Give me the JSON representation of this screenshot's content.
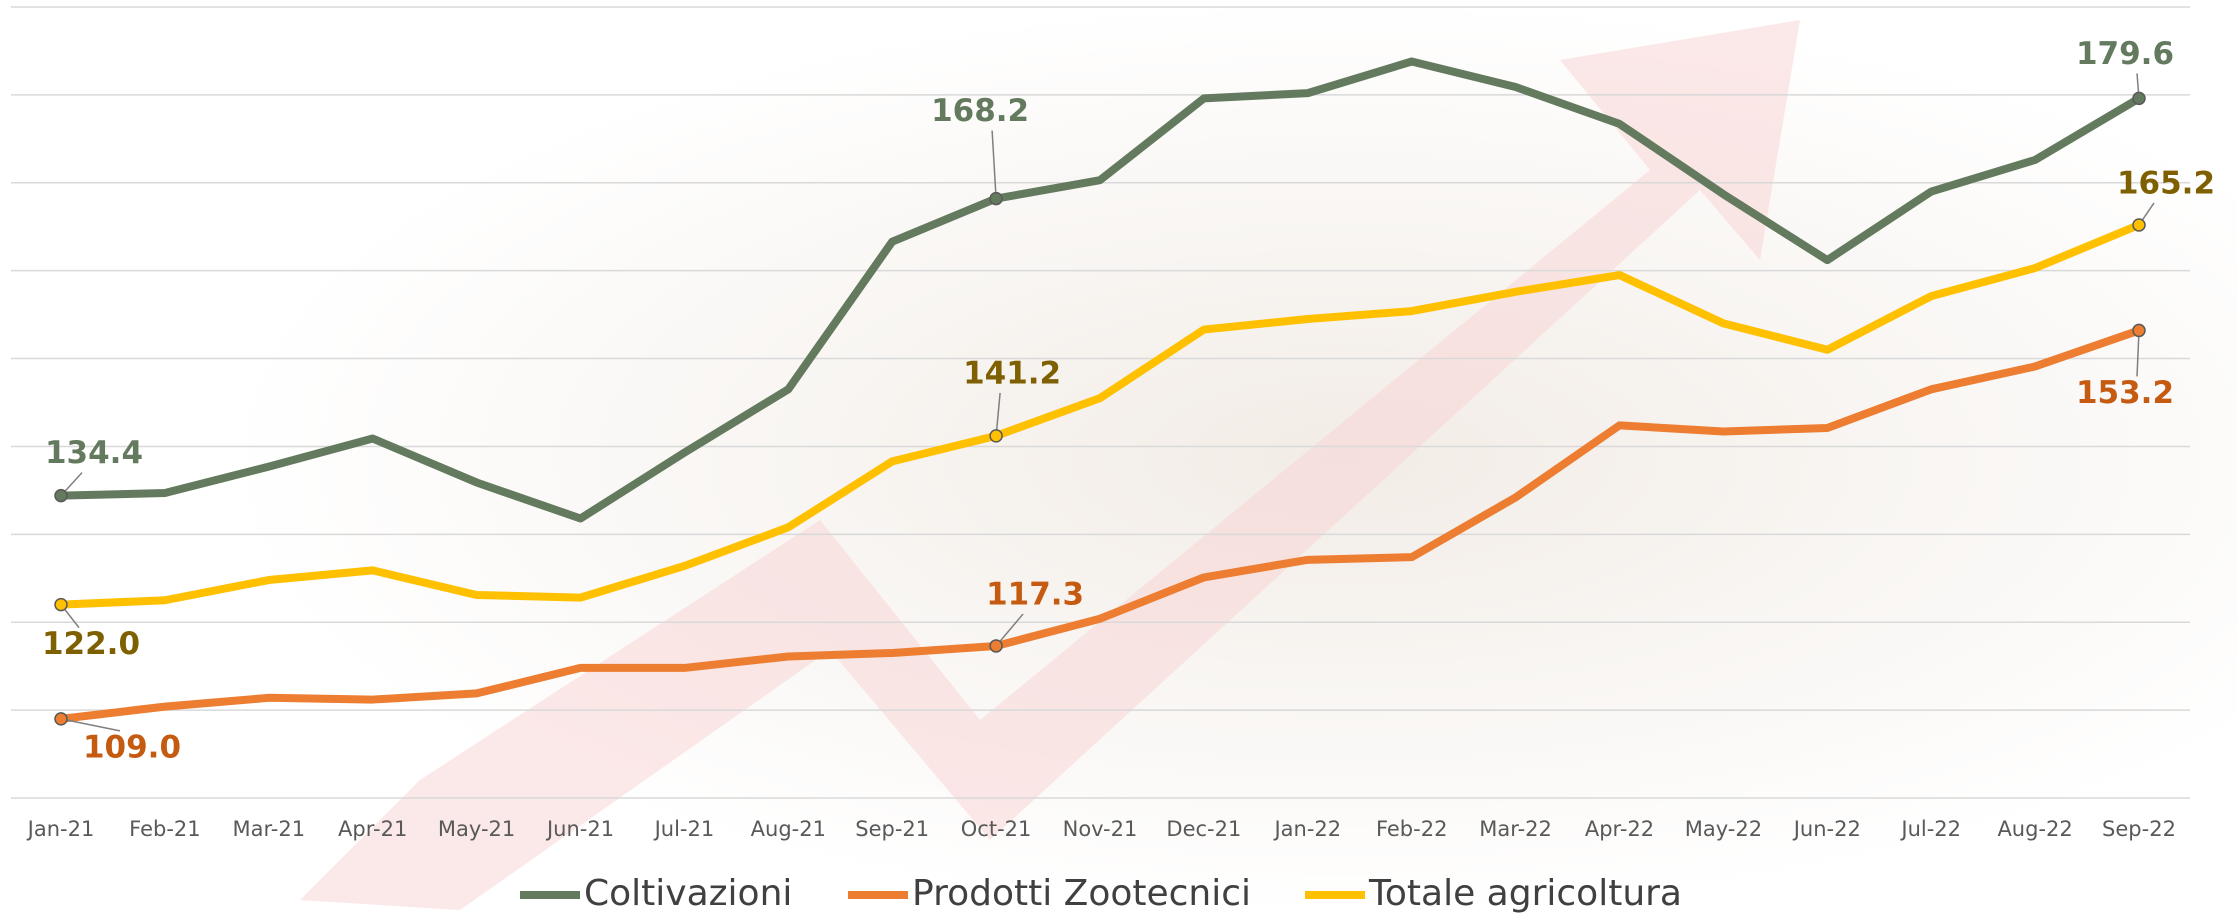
{
  "chart_data": {
    "type": "line",
    "categories": [
      "Jan-21",
      "Feb-21",
      "Mar-21",
      "Apr-21",
      "May-21",
      "Jun-21",
      "Jul-21",
      "Aug-21",
      "Sep-21",
      "Oct-21",
      "Nov-21",
      "Dec-21",
      "Jan-22",
      "Feb-22",
      "Mar-22",
      "Apr-22",
      "May-22",
      "Jun-22",
      "Jul-22",
      "Aug-22",
      "Sep-22"
    ],
    "series": [
      {
        "name": "Coltivazioni",
        "color": "#637a5e",
        "label_color": "#637a5e",
        "values": [
          134.4,
          134.7,
          137.7,
          140.9,
          135.9,
          131.8,
          139.3,
          146.5,
          163.3,
          168.2,
          170.3,
          179.6,
          180.2,
          183.8,
          180.9,
          176.7,
          168.7,
          161.2,
          169.0,
          172.6,
          179.6
        ],
        "value_labels": [
          "134.4",
          null,
          null,
          null,
          null,
          null,
          null,
          null,
          null,
          "168.2",
          null,
          null,
          null,
          null,
          null,
          null,
          null,
          null,
          null,
          null,
          "179.6"
        ]
      },
      {
        "name": "Prodotti Zootecnici",
        "color": "#ed7d31",
        "label_color": "#c55a11",
        "values": [
          109.0,
          110.4,
          111.4,
          111.2,
          111.9,
          114.8,
          114.8,
          116.1,
          116.5,
          117.3,
          120.4,
          125.1,
          127.1,
          127.4,
          134.2,
          142.4,
          141.7,
          142.1,
          146.5,
          149.1,
          153.2
        ],
        "value_labels": [
          "109.0",
          null,
          null,
          null,
          null,
          null,
          null,
          null,
          null,
          "117.3",
          null,
          null,
          null,
          null,
          null,
          null,
          null,
          null,
          null,
          null,
          "153.2"
        ]
      },
      {
        "name": "Totale agricoltura",
        "color": "#ffc000",
        "label_color": "#7f6000",
        "values": [
          122.0,
          122.5,
          124.8,
          125.9,
          123.1,
          122.8,
          126.4,
          130.8,
          138.3,
          141.2,
          145.5,
          153.3,
          154.5,
          155.4,
          157.6,
          159.5,
          154.0,
          151.0,
          157.1,
          160.3,
          165.2
        ],
        "value_labels": [
          "122.0",
          null,
          null,
          null,
          null,
          null,
          null,
          null,
          null,
          "141.2",
          null,
          null,
          null,
          null,
          null,
          null,
          null,
          null,
          null,
          null,
          "165.2"
        ]
      }
    ],
    "ylim": [
      100,
      190
    ],
    "yticks": [
      100,
      110,
      120,
      130,
      140,
      150,
      160,
      170,
      180,
      190
    ],
    "grid": true
  }
}
